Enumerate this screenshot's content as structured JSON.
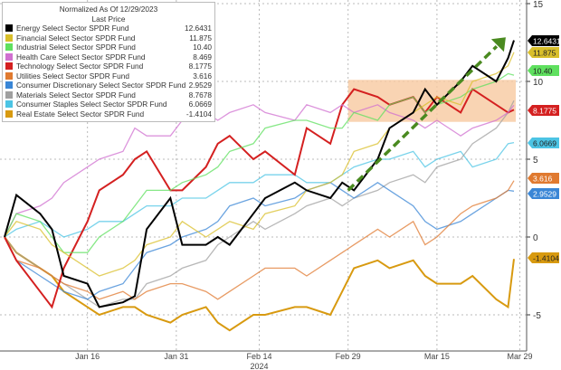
{
  "chart_data": {
    "type": "line",
    "title": "Normalized As Of 12/29/2023",
    "subtitle": "Last Price",
    "x": [
      "2024-01-02",
      "2024-01-04",
      "2024-01-08",
      "2024-01-10",
      "2024-01-12",
      "2024-01-16",
      "2024-01-18",
      "2024-01-22",
      "2024-01-24",
      "2024-01-26",
      "2024-01-30",
      "2024-02-01",
      "2024-02-05",
      "2024-02-07",
      "2024-02-09",
      "2024-02-13",
      "2024-02-15",
      "2024-02-20",
      "2024-02-22",
      "2024-02-26",
      "2024-02-28",
      "2024-03-01",
      "2024-03-05",
      "2024-03-07",
      "2024-03-11",
      "2024-03-13",
      "2024-03-15",
      "2024-03-19",
      "2024-03-21",
      "2024-03-25",
      "2024-03-27",
      "2024-03-28"
    ],
    "x_ticks": [
      {
        "date": "2024-01-16",
        "label": "Jan 16"
      },
      {
        "date": "2024-01-31",
        "label": "Jan 31"
      },
      {
        "date": "2024-02-14",
        "label": "Feb 14"
      },
      {
        "date": "2024-02-29",
        "label": "Feb 29"
      },
      {
        "date": "2024-03-15",
        "label": "Mar 15"
      },
      {
        "date": "2024-03-29",
        "label": "Mar 29"
      }
    ],
    "x_year_label": "2024",
    "ylim": [
      -6.5,
      15
    ],
    "y_ticks": [
      15,
      10,
      5,
      0,
      -5
    ],
    "grid": true,
    "legend_position": "top-left",
    "series": [
      {
        "name": "Energy Select Sector SPDR Fund",
        "last": "12.6431",
        "color": "#000000",
        "tag": true,
        "values": [
          0,
          2.7,
          1.5,
          0.5,
          -2.5,
          -3,
          -4.5,
          -4.2,
          -3.8,
          0.5,
          2.5,
          -0.5,
          -0.5,
          0,
          -0.5,
          1.5,
          2.5,
          3.5,
          3,
          2.5,
          3.5,
          3,
          5,
          7,
          8,
          9.5,
          8.5,
          10,
          11,
          10,
          11.5,
          12.64
        ]
      },
      {
        "name": "Financial Select Sector SPDR Fund",
        "last": "11.875",
        "color": "#d9bf2a",
        "tag": true,
        "values": [
          0,
          1,
          0.5,
          -0.5,
          -1,
          -2,
          -2.5,
          -2,
          -1.5,
          -0.5,
          0,
          1,
          0,
          0.5,
          1,
          0.5,
          1.5,
          2,
          3,
          3.5,
          4,
          5.5,
          6,
          7,
          8,
          8.5,
          9,
          8.5,
          10,
          10.5,
          11,
          11.88
        ]
      },
      {
        "name": "Industrial Select Sector SPDR Fund",
        "last": "10.40",
        "color": "#5fe05f",
        "tag": true,
        "values": [
          0,
          1.5,
          1,
          0,
          -1,
          -1,
          0,
          1,
          2,
          3,
          3,
          3.5,
          4,
          4.5,
          5.5,
          6,
          7,
          7.5,
          7.5,
          7,
          7,
          8,
          7.5,
          8.5,
          9,
          8,
          8.5,
          9,
          9.5,
          10,
          10.5,
          10.4
        ]
      },
      {
        "name": "Health Care Select Sector SPDR Fund",
        "last": "8.469",
        "color": "#d070d0",
        "tag": false,
        "values": [
          0,
          1.5,
          2,
          2.5,
          3.5,
          4.5,
          5,
          5.5,
          7,
          6.5,
          6.5,
          7.5,
          8,
          7.5,
          8,
          8.5,
          8,
          7.5,
          8.5,
          8,
          8.5,
          8,
          8.5,
          8,
          7.5,
          7,
          7.5,
          6.5,
          7,
          7.5,
          8,
          8.47
        ]
      },
      {
        "name": "Technology Select Sector SPDR Fund",
        "last": "8.1775",
        "color": "#d42020",
        "tag": true,
        "values": [
          0,
          -1.5,
          -3.5,
          -4.5,
          -2,
          1,
          3,
          4,
          5,
          5.5,
          3,
          3,
          4.5,
          6,
          6.5,
          5,
          5.5,
          4,
          7,
          6,
          8.5,
          9.5,
          9,
          8.5,
          9,
          8,
          9,
          8,
          9.5,
          8.5,
          8,
          8.18
        ]
      },
      {
        "name": "Utilities Select Sector SPDR Fund",
        "last": "3.616",
        "color": "#e07a30",
        "tag": true,
        "values": [
          0,
          -1.5,
          -2,
          -2.5,
          -3,
          -3.5,
          -4,
          -3.5,
          -4,
          -3.5,
          -3,
          -3,
          -3.5,
          -4,
          -3.5,
          -2.5,
          -2,
          -2,
          -2.5,
          -1.5,
          -1,
          -0.5,
          0.5,
          0,
          1,
          -0.5,
          0,
          1.5,
          2,
          2.5,
          3,
          3.62
        ]
      },
      {
        "name": "Consumer Discretionary Select Sector SPDR Fund",
        "last": "2.9529",
        "color": "#3a86d6",
        "tag": true,
        "values": [
          0,
          -1.5,
          -2.5,
          -3,
          -3.5,
          -4,
          -3.5,
          -3,
          -2,
          -1,
          -0.5,
          0,
          0.5,
          1,
          2,
          2.5,
          2,
          2.5,
          3,
          3.5,
          3,
          2.5,
          3.5,
          3,
          2,
          1,
          0.5,
          1,
          1.5,
          2.5,
          3,
          2.95
        ]
      },
      {
        "name": "Materials Select Sector SPDR Fund",
        "last": "8.7678",
        "color": "#a0a0a0",
        "tag": false,
        "values": [
          0,
          -1,
          -2,
          -2.5,
          -3,
          -4,
          -4.5,
          -4,
          -4,
          -3,
          -2.5,
          -2,
          -1.5,
          -0.5,
          0,
          1,
          0.5,
          1.5,
          2,
          2.5,
          2,
          2.5,
          3,
          3.5,
          4,
          3.5,
          4.5,
          5,
          6,
          7,
          8,
          8.77
        ]
      },
      {
        "name": "Consumer Staples Select Sector SPDR Fund",
        "last": "6.0669",
        "color": "#4cc4e4",
        "tag": true,
        "values": [
          0,
          0.5,
          1,
          0.5,
          0,
          0.5,
          1,
          1,
          1.5,
          2,
          2,
          2.5,
          2.5,
          3,
          3.5,
          3.5,
          4,
          4,
          3.5,
          3.5,
          4,
          4.5,
          5,
          5,
          5.5,
          4.5,
          5,
          5.5,
          4.5,
          5,
          6,
          6.07
        ]
      },
      {
        "name": "Real Estate Select Sector SPDR Fund",
        "last": "-1.4104",
        "color": "#d89a10",
        "tag": true,
        "values": [
          0,
          -1,
          -2,
          -2.5,
          -3.5,
          -4.5,
          -5,
          -4.5,
          -4.5,
          -5,
          -5.5,
          -5,
          -4.5,
          -5.5,
          -6,
          -5,
          -5,
          -4.5,
          -4.5,
          -5,
          -3.5,
          -2,
          -1.5,
          -2,
          -1.5,
          -2.5,
          -3,
          -3,
          -2.5,
          -4,
          -4.5,
          -1.41
        ]
      }
    ],
    "annotations": [
      {
        "type": "shaded-range",
        "x": [
          "2024-02-29",
          "2024-03-28"
        ],
        "y": [
          7.4,
          10.1
        ],
        "color": "#f8c9a0"
      },
      {
        "type": "dashed-arrow",
        "from": [
          "2024-02-29",
          3
        ],
        "to": [
          "2024-03-26",
          12.6
        ],
        "color": "#4a8a20"
      }
    ]
  }
}
